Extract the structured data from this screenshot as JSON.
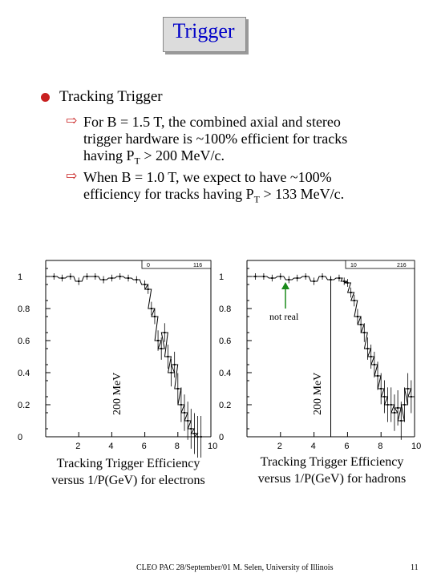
{
  "title": "Trigger",
  "bullet": {
    "heading": "Tracking Trigger",
    "item1_line1": "For B = 1.5 T, the combined axial and stereo",
    "item1_line2": "trigger hardware is ~100% efficient for tracks",
    "item1_line3_pre": "having P",
    "item1_line3_sub": "T",
    "item1_line3_post": " > 200 MeV/c.",
    "item2_line1": "When B = 1.0 T, we expect to have ~100%",
    "item2_line2_pre": "efficiency for tracks having P",
    "item2_line2_sub": "T",
    "item2_line2_post": " > 133 MeV/c."
  },
  "plots": {
    "left_caption_1": "Tracking Trigger Efficiency",
    "left_caption_2": "versus 1/P(GeV) for electrons",
    "right_caption_1": "Tracking Trigger Efficiency",
    "right_caption_2": "versus 1/P(GeV) for hadrons",
    "left_ylabel": "200 MeV",
    "right_ylabel": "200 MeV",
    "annotation": "not real"
  },
  "chart_data": [
    {
      "type": "scatter",
      "title": "",
      "xlabel": "",
      "ylabel": "",
      "xlim": [
        0,
        10
      ],
      "ylim": [
        0,
        1.1
      ],
      "xticks": [
        "2",
        "4",
        "6",
        "8",
        "10"
      ],
      "yticks": [
        "0",
        "0.2",
        "0.4",
        "0.6",
        "0.8",
        "1"
      ],
      "stat_box": [
        "0",
        "116"
      ],
      "vline_x": null,
      "x": [
        0.5,
        1.0,
        1.5,
        2.0,
        2.5,
        3.0,
        3.5,
        4.0,
        4.5,
        5.0,
        5.5,
        6.0,
        6.2,
        6.4,
        6.6,
        6.8,
        7.0,
        7.2,
        7.4,
        7.6,
        7.8,
        8.0,
        8.2,
        8.4,
        8.6,
        8.8,
        9.0,
        9.2,
        9.4
      ],
      "y": [
        1.0,
        0.99,
        1.0,
        0.97,
        1.0,
        1.0,
        0.98,
        0.99,
        1.0,
        0.99,
        0.98,
        0.95,
        0.92,
        0.8,
        0.75,
        0.6,
        0.55,
        0.65,
        0.5,
        0.4,
        0.45,
        0.3,
        0.2,
        0.15,
        0.1,
        0.05,
        0.02,
        0.0,
        0.0
      ]
    },
    {
      "type": "scatter",
      "title": "",
      "xlabel": "",
      "ylabel": "",
      "xlim": [
        0,
        10
      ],
      "ylim": [
        0,
        1.1
      ],
      "xticks": [
        "2",
        "4",
        "6",
        "8",
        "10"
      ],
      "yticks": [
        "0",
        "0.2",
        "0.4",
        "0.6",
        "0.8",
        "1"
      ],
      "stat_box": [
        "10",
        "216"
      ],
      "vline_x": 5.0,
      "x": [
        0.5,
        1.0,
        1.5,
        2.0,
        2.5,
        3.0,
        3.5,
        4.0,
        4.5,
        5.0,
        5.5,
        5.8,
        6.0,
        6.2,
        6.4,
        6.6,
        6.8,
        7.0,
        7.2,
        7.4,
        7.6,
        7.8,
        8.0,
        8.2,
        8.4,
        8.6,
        8.8,
        9.0,
        9.2,
        9.4,
        9.6,
        9.8
      ],
      "y": [
        1.0,
        1.0,
        0.99,
        1.0,
        0.98,
        0.99,
        1.0,
        0.97,
        1.0,
        0.98,
        0.99,
        0.97,
        0.96,
        0.9,
        0.85,
        0.75,
        0.7,
        0.65,
        0.55,
        0.5,
        0.45,
        0.38,
        0.3,
        0.25,
        0.2,
        0.2,
        0.15,
        0.18,
        0.1,
        0.2,
        0.3,
        0.25
      ]
    }
  ],
  "footer": {
    "center": "CLEO PAC 28/September/01  M. Selen, University of Illinois",
    "page": "11"
  }
}
